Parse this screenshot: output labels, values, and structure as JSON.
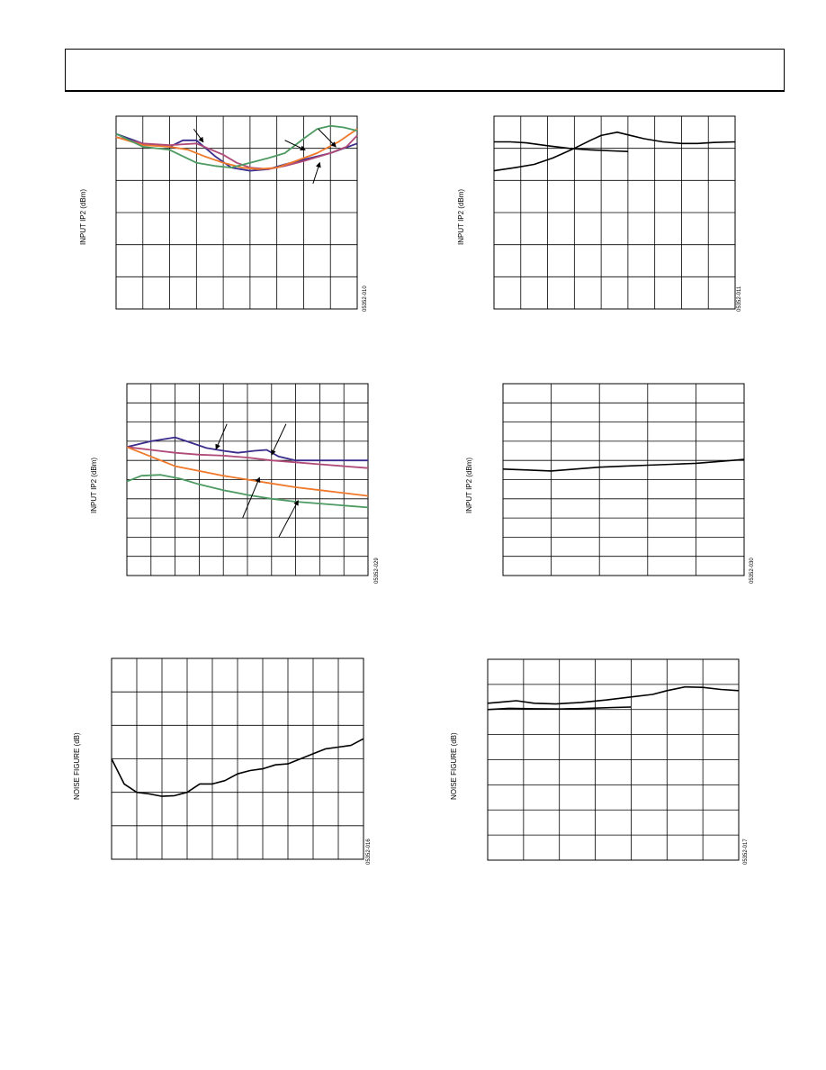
{
  "header": {
    "title": ""
  },
  "colors": {
    "navy": "#3a2c8c",
    "orange": "#f0782a",
    "magenta": "#b04a78",
    "green": "#4d9a62",
    "black": "#000000"
  },
  "chart_data": [
    {
      "type": "line",
      "ylabel": "INPUT IP2 (dBm)",
      "figcode": "05352-010",
      "grid": true,
      "xlim": [
        0,
        9
      ],
      "ylim": [
        0,
        6
      ],
      "series": [
        {
          "color": "#3a2c8c",
          "x": [
            0,
            1,
            2,
            2.5,
            3,
            3.7,
            4.3,
            5,
            5.7,
            6.3,
            7,
            8,
            9
          ],
          "y": [
            5.45,
            5.15,
            5.05,
            5.25,
            5.25,
            4.75,
            4.4,
            4.3,
            4.35,
            4.5,
            4.65,
            4.85,
            5.15
          ]
        },
        {
          "color": "#b04a78",
          "x": [
            0,
            1,
            2,
            3,
            4,
            4.5,
            5,
            5.7,
            6.3,
            7,
            8,
            8.6,
            9
          ],
          "y": [
            5.35,
            5.15,
            5.1,
            5.15,
            4.8,
            4.55,
            4.4,
            4.35,
            4.45,
            4.6,
            4.85,
            5.05,
            5.4
          ]
        },
        {
          "color": "#f0782a",
          "x": [
            0,
            1,
            2,
            2.7,
            3.3,
            4,
            4.7,
            5.3,
            6,
            6.7,
            7.5,
            8.3,
            9
          ],
          "y": [
            5.35,
            5.1,
            5.05,
            4.95,
            4.75,
            4.55,
            4.4,
            4.35,
            4.4,
            4.6,
            4.85,
            5.2,
            5.6
          ]
        },
        {
          "color": "#4d9a62",
          "x": [
            0,
            1,
            2,
            2.5,
            3,
            3.7,
            4.3,
            5,
            5.7,
            6.3,
            7,
            7.5,
            8,
            8.5,
            9
          ],
          "y": [
            5.45,
            5.05,
            4.95,
            4.75,
            4.55,
            4.45,
            4.4,
            4.55,
            4.7,
            4.85,
            5.3,
            5.6,
            5.7,
            5.65,
            5.55
          ]
        }
      ],
      "annotations": [
        {
          "x": [
            2.9,
            3.25
          ],
          "y": [
            5.6,
            5.2
          ]
        },
        {
          "x": [
            6.3,
            7.05
          ],
          "y": [
            5.25,
            4.95
          ]
        },
        {
          "x": [
            7.55,
            8.2
          ],
          "y": [
            5.6,
            5.05
          ]
        },
        {
          "x": [
            7.35,
            7.6
          ],
          "y": [
            3.9,
            4.55
          ]
        }
      ]
    },
    {
      "type": "line",
      "ylabel": "INPUT IP2 (dBm)",
      "figcode": "05352-011",
      "grid": true,
      "xlim": [
        0,
        9
      ],
      "ylim": [
        0,
        6
      ],
      "series": [
        {
          "color": "#000000",
          "x": [
            0,
            0.8,
            1.5,
            2.2,
            3,
            3.6,
            4,
            4.6,
            5,
            5.6,
            6.3,
            7,
            7.6,
            8.2,
            9
          ],
          "y": [
            4.3,
            4.4,
            4.5,
            4.7,
            5.0,
            5.25,
            5.4,
            5.5,
            5.42,
            5.3,
            5.2,
            5.15,
            5.15,
            5.18,
            5.2
          ]
        },
        {
          "color": "#000000",
          "x": [
            0,
            0.6,
            1.2,
            2,
            2.8,
            3.6,
            4.4,
            5
          ],
          "y": [
            5.2,
            5.2,
            5.17,
            5.08,
            5.0,
            4.95,
            4.92,
            4.9
          ]
        }
      ]
    },
    {
      "type": "line",
      "ylabel": "INPUT IP2 (dBm)",
      "figcode": "05352-029",
      "grid": true,
      "xlim": [
        0,
        10
      ],
      "ylim": [
        0,
        10
      ],
      "series": [
        {
          "color": "#3a2c8c",
          "x": [
            0,
            1,
            2,
            2.6,
            3.3,
            4,
            4.6,
            5.3,
            5.8,
            6.3,
            7,
            8,
            9,
            10
          ],
          "y": [
            6.7,
            7.0,
            7.2,
            6.95,
            6.65,
            6.5,
            6.4,
            6.5,
            6.55,
            6.2,
            6.0,
            6.0,
            6.0,
            6.0
          ]
        },
        {
          "color": "#b04a78",
          "x": [
            0,
            1,
            2,
            3,
            4,
            5,
            6,
            7,
            8,
            9,
            10
          ],
          "y": [
            6.7,
            6.55,
            6.4,
            6.3,
            6.25,
            6.15,
            6.0,
            5.9,
            5.8,
            5.7,
            5.6
          ]
        },
        {
          "color": "#f0782a",
          "x": [
            0,
            1,
            2,
            3,
            4,
            5,
            6,
            7,
            8,
            9,
            10
          ],
          "y": [
            6.7,
            6.2,
            5.7,
            5.45,
            5.2,
            5.0,
            4.8,
            4.6,
            4.45,
            4.3,
            4.15
          ]
        },
        {
          "color": "#4d9a62",
          "x": [
            0,
            0.6,
            1.4,
            2.2,
            3,
            4,
            5,
            6,
            7,
            8,
            9,
            10
          ],
          "y": [
            4.9,
            5.2,
            5.25,
            5.05,
            4.75,
            4.45,
            4.2,
            4.0,
            3.85,
            3.75,
            3.65,
            3.55
          ]
        }
      ],
      "annotations": [
        {
          "x": [
            4.15,
            3.7
          ],
          "y": [
            7.9,
            6.6
          ]
        },
        {
          "x": [
            6.6,
            6.0
          ],
          "y": [
            7.9,
            6.3
          ]
        },
        {
          "x": [
            4.8,
            5.5
          ],
          "y": [
            3.0,
            5.1
          ]
        },
        {
          "x": [
            6.3,
            7.1
          ],
          "y": [
            2.0,
            3.9
          ]
        }
      ]
    },
    {
      "type": "line",
      "ylabel": "INPUT IP2 (dBm)",
      "figcode": "05352-030",
      "grid": true,
      "xlim": [
        0,
        5
      ],
      "ylim": [
        0,
        10
      ],
      "series": [
        {
          "color": "#000000",
          "x": [
            0,
            0.5,
            1,
            1.5,
            2,
            2.5,
            3,
            3.5,
            4,
            4.5,
            5
          ],
          "y": [
            5.55,
            5.5,
            5.45,
            5.55,
            5.65,
            5.7,
            5.75,
            5.8,
            5.85,
            5.95,
            6.05
          ]
        }
      ]
    },
    {
      "type": "line",
      "ylabel": "NOISE FIGURE (dB)",
      "figcode": "05352-016",
      "grid": true,
      "xlim": [
        0,
        10
      ],
      "ylim": [
        0,
        6
      ],
      "series": [
        {
          "color": "#000000",
          "x": [
            0,
            0.5,
            1,
            1.5,
            2,
            2.5,
            3,
            3.5,
            4,
            4.5,
            5,
            5.5,
            6,
            6.5,
            7,
            7.5,
            8,
            8.5,
            9,
            9.5,
            10
          ],
          "y": [
            3.0,
            2.25,
            2.0,
            1.95,
            1.88,
            1.9,
            2.0,
            2.25,
            2.25,
            2.35,
            2.55,
            2.65,
            2.7,
            2.82,
            2.85,
            3.0,
            3.15,
            3.3,
            3.35,
            3.4,
            3.6
          ]
        }
      ]
    },
    {
      "type": "line",
      "ylabel": "NOISE FIGURE (dB)",
      "figcode": "05352-017",
      "grid": true,
      "xlim": [
        0,
        7
      ],
      "ylim": [
        0,
        8
      ],
      "series": [
        {
          "color": "#000000",
          "x": [
            0,
            0.4,
            0.8,
            1.3,
            1.9,
            2.6,
            3.3,
            4,
            4.6,
            5,
            5.5,
            6,
            6.5,
            7
          ],
          "y": [
            6.25,
            6.3,
            6.35,
            6.25,
            6.22,
            6.28,
            6.38,
            6.5,
            6.6,
            6.75,
            6.9,
            6.88,
            6.8,
            6.75
          ]
        },
        {
          "color": "#000000",
          "x": [
            0,
            0.6,
            1.3,
            2,
            2.8,
            3.5,
            4
          ],
          "y": [
            6.0,
            6.05,
            6.03,
            6.02,
            6.05,
            6.08,
            6.1
          ]
        }
      ]
    }
  ]
}
